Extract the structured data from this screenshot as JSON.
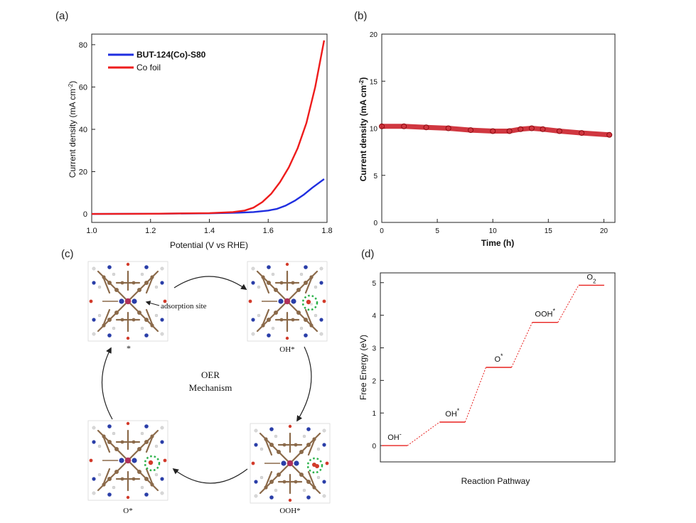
{
  "panel_labels": {
    "a": "(a)",
    "b": "(b)",
    "c": "(c)",
    "d": "(d)"
  },
  "mechanism": {
    "center_line1": "OER",
    "center_line2": "Mechanism",
    "annotation": "adsorption site",
    "state_labels": {
      "top_left": "*",
      "top_right": "OH*",
      "bottom_right": "OOH*",
      "bottom_left": "O*"
    },
    "colors": {
      "carbon": "#8b6a4a",
      "nitrogen": "#2a3ea8",
      "cobalt": "#b0305a",
      "oxygen": "#d23a2a",
      "hydrogen": "#d9d9d9",
      "highlight": "#2bb24a"
    }
  },
  "chart_data": [
    {
      "type": "line",
      "panel": "(a)",
      "xlabel": "Potential (V vs RHE)",
      "ylabel": "Current density (mA cm-2)",
      "xlim": [
        1.0,
        1.8
      ],
      "ylim": [
        -4,
        85
      ],
      "xticks": [
        1.0,
        1.2,
        1.4,
        1.6,
        1.8
      ],
      "xtick_labels": [
        "1.0",
        "1.2",
        "1.4",
        "1.6",
        "1.8"
      ],
      "yticks": [
        0,
        20,
        40,
        60,
        80
      ],
      "ytick_labels": [
        "0",
        "20",
        "40",
        "60",
        "80"
      ],
      "legend": "top-left",
      "series": [
        {
          "name": "BUT-124(Co)-S80",
          "color": "#1f2ee0",
          "x": [
            1.0,
            1.2,
            1.4,
            1.5,
            1.55,
            1.6,
            1.63,
            1.66,
            1.69,
            1.72,
            1.75,
            1.79
          ],
          "y": [
            0,
            0.1,
            0.3,
            0.6,
            0.9,
            1.6,
            2.4,
            4.0,
            6.2,
            9.0,
            12.4,
            16.5
          ]
        },
        {
          "name": "Co foil",
          "color": "#ee1c1c",
          "x": [
            1.0,
            1.2,
            1.4,
            1.48,
            1.52,
            1.55,
            1.58,
            1.61,
            1.64,
            1.67,
            1.7,
            1.73,
            1.76,
            1.79
          ],
          "y": [
            0,
            0.1,
            0.4,
            0.9,
            1.6,
            3.0,
            5.6,
            9.5,
            15.0,
            22.0,
            31.0,
            43.0,
            60.0,
            82.0
          ]
        }
      ]
    },
    {
      "type": "scatter",
      "panel": "(b)",
      "xlabel": "Time (h)",
      "ylabel": "Current density (mA cm-2)",
      "xlim": [
        0,
        21
      ],
      "ylim": [
        0,
        20
      ],
      "xticks": [
        0,
        5,
        10,
        15,
        20
      ],
      "xtick_labels": [
        "0",
        "5",
        "10",
        "15",
        "20"
      ],
      "yticks": [
        0,
        5,
        10,
        15,
        20
      ],
      "ytick_labels": [
        "0",
        "5",
        "10",
        "15",
        "20"
      ],
      "series": [
        {
          "name": "",
          "color": "#c8141e",
          "x": [
            0,
            2,
            4,
            6,
            8,
            10,
            11.5,
            12.5,
            13.5,
            14.5,
            16,
            18,
            20.5
          ],
          "y": [
            10.2,
            10.2,
            10.1,
            10.0,
            9.8,
            9.7,
            9.7,
            9.9,
            10.0,
            9.9,
            9.7,
            9.5,
            9.3
          ]
        }
      ]
    },
    {
      "type": "line",
      "panel": "(d)",
      "xlabel": "Reaction Pathway",
      "ylabel": "Free Energy (eV)",
      "ylim": [
        -0.5,
        5.3
      ],
      "yticks": [
        0,
        1,
        2,
        3,
        4,
        5
      ],
      "ytick_labels": [
        "0",
        "1",
        "2",
        "3",
        "4",
        "5"
      ],
      "color": "#e8201e",
      "steps": [
        {
          "label": "OH-",
          "value": 0.0
        },
        {
          "label": "OH*",
          "value": 0.72
        },
        {
          "label": "O*",
          "value": 2.4
        },
        {
          "label": "OOH*",
          "value": 3.78
        },
        {
          "label": "O2",
          "value": 4.92
        }
      ]
    }
  ]
}
